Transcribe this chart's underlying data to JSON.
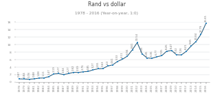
{
  "title": "Rand vs dollar",
  "subtitle": "1978 - 2016 (Year-on-year, 1:0)",
  "years": [
    1978,
    1979,
    1980,
    1981,
    1982,
    1983,
    1984,
    1985,
    1986,
    1987,
    1988,
    1989,
    1990,
    1991,
    1992,
    1993,
    1994,
    1995,
    1996,
    1997,
    1998,
    1999,
    2000,
    2001,
    2002,
    2003,
    2004,
    2005,
    2006,
    2007,
    2008,
    2009,
    2010,
    2011,
    2012,
    2013,
    2014,
    2015,
    2016
  ],
  "values": [
    0.87,
    0.84,
    0.78,
    0.88,
    1.08,
    1.11,
    1.47,
    2.19,
    2.27,
    2.04,
    2.27,
    2.62,
    2.59,
    2.76,
    2.85,
    3.27,
    3.55,
    3.63,
    4.3,
    4.61,
    5.53,
    6.11,
    6.94,
    8.61,
    10.54,
    7.56,
    6.45,
    6.36,
    6.77,
    7.05,
    8.26,
    8.47,
    7.32,
    7.26,
    8.21,
    9.65,
    10.84,
    12.76,
    15.65
  ],
  "line_color": "#1a5276",
  "marker_color": "#2e86c1",
  "bg_color": "#FFFFFF",
  "grid_color": "#d5d8dc",
  "ylim": [
    0,
    16
  ],
  "yticks": [
    0,
    2,
    4,
    6,
    8,
    10,
    12,
    14,
    16
  ],
  "title_fontsize": 5.5,
  "subtitle_fontsize": 4.2,
  "tick_fontsize": 3.2,
  "annotation_fontsize": 2.8
}
